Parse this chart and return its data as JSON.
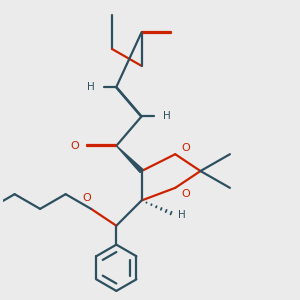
{
  "bg_color": "#ebebeb",
  "bond_color": "#2d5060",
  "red_color": "#cc2200",
  "lw": 1.6,
  "dbo": 0.012,
  "figsize": [
    3.0,
    3.0
  ],
  "dpi": 100,
  "xlim": [
    -2.5,
    4.5
  ],
  "ylim": [
    -3.5,
    3.5
  ]
}
